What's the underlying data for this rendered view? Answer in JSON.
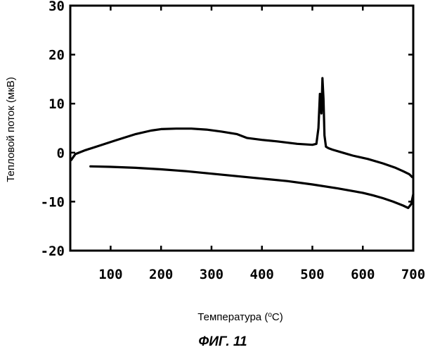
{
  "chart_data": {
    "type": "line",
    "title": "",
    "xlabel_prefix": "Температура (",
    "xlabel_sup": "o",
    "xlabel_suffix": "C)",
    "ylabel": "Тепловой поток (мкВ)",
    "caption": "ФИГ. 11",
    "xlim": [
      20,
      700
    ],
    "ylim": [
      -20,
      30
    ],
    "xticks": [
      100,
      200,
      300,
      400,
      500,
      600,
      700
    ],
    "yticks": [
      30,
      20,
      10,
      0,
      -10,
      -20
    ],
    "xtick_labels": [
      "100",
      "200",
      "300",
      "400",
      "500",
      "600",
      "700"
    ],
    "ytick_labels": [
      "30",
      "20",
      "10",
      "0",
      "-10",
      "-20"
    ],
    "grid": false,
    "series": [
      {
        "x": [
          22,
          30,
          50,
          80,
          110,
          150,
          180,
          200,
          230,
          260,
          290,
          320,
          350,
          370,
          400,
          430,
          470,
          500,
          508,
          512,
          515,
          518,
          520,
          522,
          524,
          527,
          532,
          540,
          560,
          580,
          610,
          640,
          665,
          680,
          692,
          698
        ],
        "y": [
          -1.5,
          -0.3,
          0.5,
          1.5,
          2.5,
          3.8,
          4.5,
          4.8,
          4.9,
          4.9,
          4.7,
          4.3,
          3.8,
          3.0,
          2.6,
          2.3,
          1.8,
          1.6,
          1.8,
          5.0,
          12.0,
          8.0,
          15.2,
          11.0,
          3.5,
          1.2,
          0.9,
          0.6,
          0.0,
          -0.6,
          -1.3,
          -2.2,
          -3.1,
          -3.8,
          -4.4,
          -5.0
        ]
      },
      {
        "x": [
          60,
          100,
          150,
          200,
          250,
          300,
          350,
          400,
          450,
          500,
          550,
          600,
          620,
          640,
          660,
          680,
          690,
          696,
          700
        ],
        "y": [
          -2.8,
          -2.9,
          -3.1,
          -3.4,
          -3.8,
          -4.3,
          -4.8,
          -5.3,
          -5.8,
          -6.5,
          -7.3,
          -8.2,
          -8.7,
          -9.3,
          -10.0,
          -10.8,
          -11.3,
          -10.5,
          -8.5
        ]
      }
    ]
  }
}
